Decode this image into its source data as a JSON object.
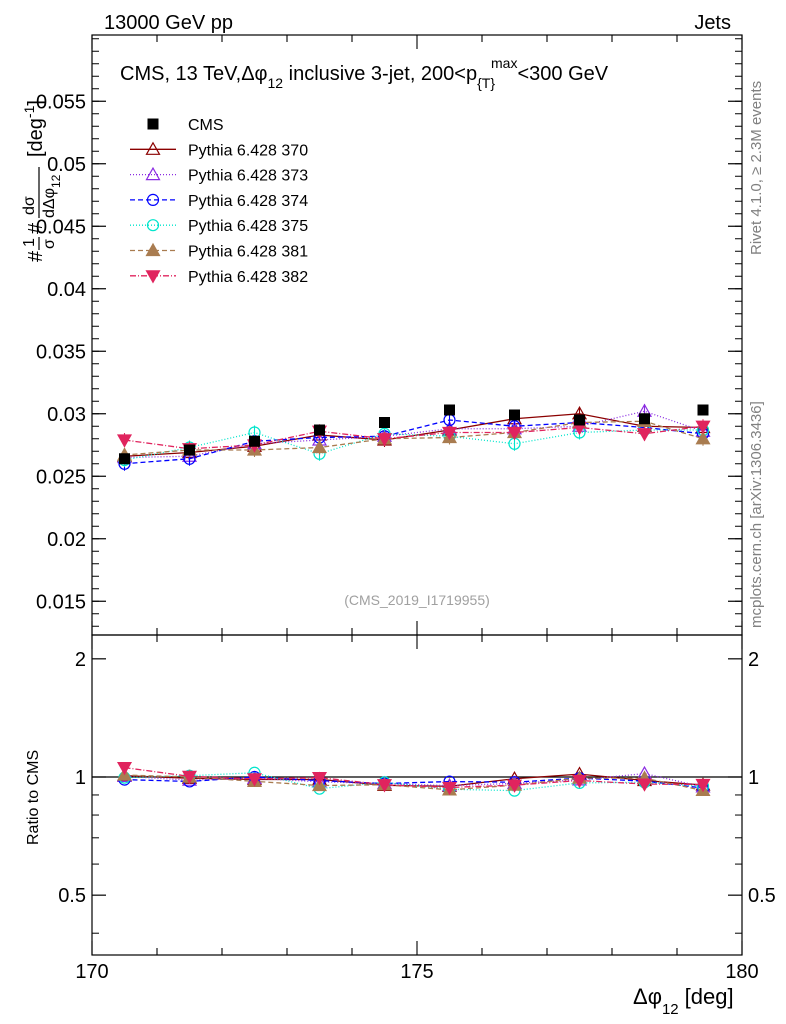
{
  "header": {
    "left": "13000 GeV pp",
    "right": "Jets"
  },
  "side_labels": {
    "rivet": "Rivet 4.1.0, ≥ 2.3M events",
    "mcplots": "mcplots.cern.ch [arXiv:1306.3436]"
  },
  "colors": {
    "cms": "#000000",
    "p370": "#8b0000",
    "p373": "#8a2be2",
    "p374": "#0000ff",
    "p375": "#00e5cc",
    "p381": "#a97c50",
    "p382": "#e0245e"
  },
  "chart_data": {
    "type": "line",
    "title": "CMS, 13 TeV, Δφ₁₂ inclusive 3-jet, 200<p{T}max<300 GeV",
    "title_parts": {
      "pre": "CMS, 13 TeV,",
      "dphi": "Δφ",
      "sub12": "12",
      "mid": " inclusive 3-jet, 200<p",
      "subT": "{T}",
      "supmax": "max",
      "post": "<300 GeV"
    },
    "ylabel_main_parts": {
      "frac": "#",
      "one": "1",
      "sigma": "σ",
      "hash": "#",
      "dsigma": "dσ",
      "ddphi": "dΔφ",
      "sub12": "12",
      "unit": "[deg",
      "unit_sup": "-1",
      "unit_close": "]"
    },
    "ylabel_ratio": "Ratio to CMS",
    "xlabel_parts": {
      "dphi": "Δφ",
      "sub12": "12",
      "unit": "[deg]"
    },
    "watermark": "(CMS_2019_I1719955)",
    "xlim": [
      170,
      180
    ],
    "ylim": [
      0.0123,
      0.0603
    ],
    "ratio_ylim": [
      0.352,
      2.3
    ],
    "x_ticks": [
      "170",
      "175",
      "180"
    ],
    "y_ticks": [
      "0.015",
      "0.02",
      "0.025",
      "0.03",
      "0.035",
      "0.04",
      "0.045",
      "0.05",
      "0.055"
    ],
    "ratio_ticks": [
      "0.5",
      "1",
      "2"
    ],
    "x": [
      170.5,
      171.5,
      172.5,
      173.5,
      174.5,
      175.5,
      176.5,
      177.5,
      178.5,
      179.4
    ],
    "series": [
      {
        "name": "CMS",
        "key": "cms",
        "marker": "square",
        "dash": "none",
        "values": [
          0.0264,
          0.0271,
          0.0278,
          0.0287,
          0.0293,
          0.0303,
          0.0299,
          0.0295,
          0.0296,
          0.0303
        ]
      },
      {
        "name": "Pythia 6.428 370",
        "key": "p370",
        "marker": "tri-up-open",
        "dash": "none",
        "values": [
          0.0266,
          0.0269,
          0.0274,
          0.0283,
          0.0279,
          0.0287,
          0.0296,
          0.03,
          0.029,
          0.0289
        ]
      },
      {
        "name": "Pythia 6.428 373",
        "key": "p373",
        "marker": "tri-up-open",
        "dash": "1,2",
        "values": [
          0.0265,
          0.0266,
          0.0276,
          0.0279,
          0.0282,
          0.0288,
          0.0288,
          0.029,
          0.0302,
          0.0286
        ]
      },
      {
        "name": "Pythia 6.428 374",
        "key": "p374",
        "marker": "circle-open",
        "dash": "5,3",
        "values": [
          0.026,
          0.0264,
          0.0278,
          0.0281,
          0.0282,
          0.0295,
          0.029,
          0.0293,
          0.0289,
          0.0284
        ]
      },
      {
        "name": "Pythia 6.428 375",
        "key": "p375",
        "marker": "circle-open",
        "dash": "1,2",
        "values": [
          0.0263,
          0.0273,
          0.0285,
          0.0268,
          0.0284,
          0.0282,
          0.0276,
          0.0285,
          0.0287,
          0.0287
        ]
      },
      {
        "name": "Pythia 6.428 381",
        "key": "p381",
        "marker": "tri-up-filled",
        "dash": "5,3",
        "values": [
          0.0267,
          0.0271,
          0.0271,
          0.0273,
          0.028,
          0.0281,
          0.0285,
          0.0293,
          0.0294,
          0.028
        ]
      },
      {
        "name": "Pythia 6.428 382",
        "key": "p382",
        "marker": "tri-down-filled",
        "dash": "6,2,1,2",
        "values": [
          0.0279,
          0.0272,
          0.0275,
          0.0286,
          0.028,
          0.0285,
          0.0285,
          0.0289,
          0.0284,
          0.029
        ]
      }
    ]
  }
}
